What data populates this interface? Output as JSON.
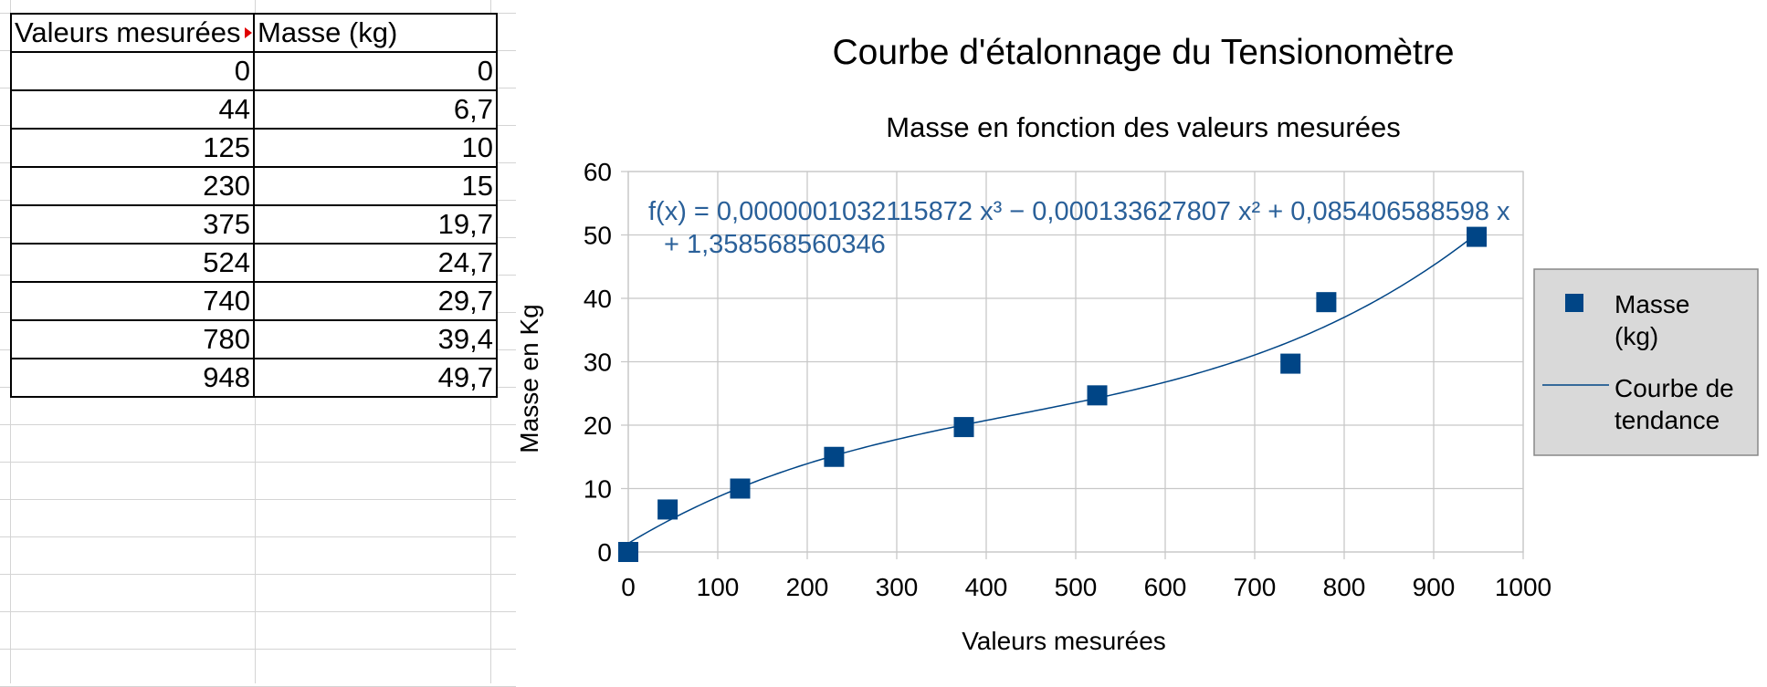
{
  "table": {
    "headers": [
      "Valeurs mesurées",
      "Masse (kg)"
    ],
    "rows": [
      [
        "0",
        "0"
      ],
      [
        "44",
        "6,7"
      ],
      [
        "125",
        "10"
      ],
      [
        "230",
        "15"
      ],
      [
        "375",
        "19,7"
      ],
      [
        "524",
        "24,7"
      ],
      [
        "740",
        "29,7"
      ],
      [
        "780",
        "39,4"
      ],
      [
        "948",
        "49,7"
      ]
    ]
  },
  "chart_data": {
    "type": "scatter",
    "title": "Courbe d'étalonnage du Tensionomètre",
    "subtitle": "Masse en fonction des valeurs mesurées",
    "xlabel": "Valeurs mesurées",
    "ylabel": "Masse en Kg",
    "xlim": [
      0,
      1000
    ],
    "ylim": [
      0,
      60
    ],
    "xticks": [
      0,
      100,
      200,
      300,
      400,
      500,
      600,
      700,
      800,
      900,
      1000
    ],
    "yticks": [
      0,
      10,
      20,
      30,
      40,
      50,
      60
    ],
    "grid": true,
    "legend_position": "right",
    "series": [
      {
        "name": "Masse (kg)",
        "legend_lines": [
          "Masse",
          "(kg)"
        ],
        "color": "#004586",
        "marker": "square",
        "x": [
          0,
          44,
          125,
          230,
          375,
          524,
          740,
          780,
          948
        ],
        "y": [
          0,
          6.7,
          10,
          15,
          19.7,
          24.7,
          29.7,
          39.4,
          49.7
        ]
      }
    ],
    "trendline": {
      "name": "Courbe de tendance",
      "legend_lines": [
        "Courbe de",
        "tendance"
      ],
      "type": "polynomial",
      "degree": 3,
      "coefficients": [
        1.358568560346,
        0.085406588598,
        -0.000133627807,
        1.032115872e-07
      ],
      "color": "#004586",
      "equation_lines": [
        "f(x) = 0,0000001032115872 x³ − 0,000133627807 x² + 0,085406588598 x",
        "+ 1,358568560346"
      ]
    },
    "colors": {
      "accent": "#004586",
      "equation": "#2a6099",
      "legend_bg": "#d9d9d9"
    }
  }
}
